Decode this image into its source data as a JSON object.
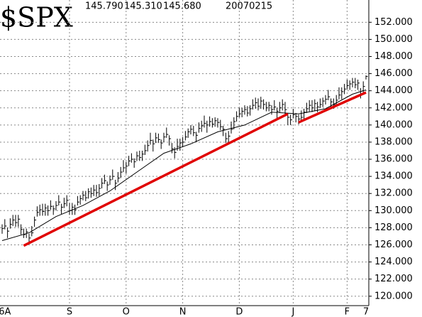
{
  "chart_data": {
    "type": "ohlc",
    "title": "$SPX",
    "quote": [
      "145.790",
      "145.310",
      "145.680"
    ],
    "date": "20070215",
    "categories": [
      null,
      "6A",
      null,
      null,
      null,
      null,
      null,
      null,
      null,
      null,
      null,
      null,
      null,
      null,
      null,
      null,
      null,
      null,
      null,
      null,
      null,
      null,
      null,
      null,
      null,
      "S",
      null,
      null,
      null,
      null,
      null,
      null,
      null,
      null,
      null,
      null,
      null,
      null,
      null,
      null,
      null,
      null,
      null,
      null,
      null,
      null,
      "O",
      null,
      null,
      null,
      null,
      null,
      null,
      null,
      null,
      null,
      null,
      null,
      null,
      null,
      null,
      null,
      null,
      null,
      null,
      null,
      null,
      "N",
      null,
      null,
      null,
      null,
      null,
      null,
      null,
      null,
      null,
      null,
      null,
      null,
      null,
      null,
      null,
      null,
      null,
      null,
      null,
      null,
      "D",
      null,
      null,
      null,
      null,
      null,
      null,
      null,
      null,
      null,
      null,
      null,
      null,
      null,
      null,
      null,
      null,
      null,
      null,
      null,
      "J",
      null,
      null,
      null,
      null,
      null,
      null,
      null,
      null,
      null,
      null,
      null,
      null,
      null,
      null,
      null,
      null,
      null,
      null,
      null,
      "F",
      null,
      null,
      null,
      null,
      null,
      null,
      "7"
    ],
    "high": [
      128.4,
      129.0,
      128.0,
      129.1,
      129.5,
      129.5,
      129.5,
      128.4,
      127.9,
      127.9,
      127.3,
      128.2,
      129.3,
      130.5,
      130.7,
      130.8,
      130.8,
      130.6,
      131.2,
      130.6,
      131.1,
      131.8,
      130.8,
      131.5,
      131.8,
      130.9,
      130.9,
      130.7,
      131.7,
      131.8,
      132.3,
      132.3,
      132.6,
      132.7,
      133.0,
      133.0,
      133.1,
      133.8,
      134.2,
      133.4,
      134.1,
      134.8,
      133.6,
      134.5,
      135.1,
      135.9,
      135.7,
      136.4,
      136.7,
      136.1,
      136.9,
      137.0,
      137.0,
      137.7,
      138.2,
      139.1,
      138.3,
      139.1,
      139.0,
      138.3,
      139.1,
      139.7,
      138.8,
      137.9,
      137.4,
      138.4,
      138.4,
      138.6,
      139.3,
      139.6,
      140.0,
      139.9,
      139.2,
      140.3,
      140.5,
      141.1,
      140.5,
      141.0,
      140.8,
      140.9,
      140.8,
      140.6,
      139.9,
      139.1,
      139.3,
      140.4,
      140.9,
      141.6,
      142.0,
      142.0,
      142.3,
      142.2,
      142.3,
      143.0,
      143.2,
      143.1,
      143.3,
      143.0,
      142.7,
      142.7,
      142.3,
      142.9,
      142.0,
      142.7,
      143.0,
      142.7,
      141.4,
      141.2,
      141.9,
      141.4,
      141.2,
      141.7,
      141.9,
      142.6,
      142.9,
      142.9,
      143.0,
      142.7,
      143.1,
      143.2,
      143.5,
      144.1,
      143.1,
      143.1,
      143.5,
      144.4,
      144.4,
      144.8,
      145.3,
      145.2,
      145.5,
      145.5,
      145.3,
      144.3,
      145.1,
      145.79
    ],
    "low": [
      127.3,
      127.8,
      126.8,
      127.9,
      128.2,
      128.1,
      128.1,
      127.2,
      126.8,
      126.8,
      126.2,
      127.0,
      128.1,
      129.3,
      129.4,
      129.4,
      129.4,
      129.4,
      130.1,
      129.5,
      130.0,
      130.6,
      129.6,
      130.3,
      130.5,
      129.5,
      129.5,
      129.5,
      130.6,
      130.7,
      131.2,
      131.1,
      131.4,
      131.5,
      131.7,
      131.6,
      131.7,
      132.6,
      133.1,
      132.3,
      133.0,
      133.6,
      132.4,
      133.3,
      133.8,
      134.5,
      134.3,
      135.2,
      135.6,
      135.0,
      135.8,
      135.8,
      135.8,
      136.5,
      136.9,
      137.7,
      136.9,
      137.9,
      137.9,
      137.2,
      138.0,
      138.5,
      137.6,
      136.7,
      136.1,
      137.0,
      137.0,
      137.4,
      138.2,
      138.5,
      138.9,
      138.7,
      138.0,
      139.1,
      139.2,
      139.7,
      139.1,
      139.8,
      139.7,
      139.8,
      139.7,
      139.4,
      138.7,
      137.9,
      138.0,
      139.0,
      139.5,
      140.4,
      140.9,
      140.9,
      141.2,
      141.0,
      141.1,
      141.8,
      141.9,
      141.7,
      141.9,
      141.8,
      141.6,
      141.6,
      141.2,
      141.7,
      140.8,
      141.5,
      141.7,
      141.3,
      140.0,
      140.0,
      140.8,
      140.3,
      140.1,
      140.5,
      140.7,
      141.4,
      141.6,
      141.5,
      141.6,
      141.5,
      142.0,
      142.1,
      142.4,
      142.9,
      141.9,
      141.9,
      142.2,
      143.0,
      143.0,
      143.6,
      144.2,
      144.1,
      144.4,
      144.3,
      144.1,
      143.1,
      143.8,
      145.31
    ],
    "close": [
      127.9,
      128.2,
      127.6,
      128.4,
      128.9,
      128.6,
      129.0,
      127.8,
      127.2,
      127.5,
      126.8,
      127.4,
      128.9,
      129.8,
      130.1,
      129.9,
      130.3,
      130.0,
      130.5,
      130.2,
      130.6,
      131.0,
      130.4,
      130.8,
      131.2,
      130.0,
      130.4,
      130.1,
      131.0,
      131.4,
      131.8,
      131.5,
      132.2,
      132.0,
      132.4,
      132.1,
      132.6,
      133.2,
      133.5,
      133.0,
      133.6,
      134.0,
      133.2,
      133.8,
      134.5,
      135.0,
      135.2,
      135.8,
      136.0,
      135.7,
      136.4,
      136.2,
      136.6,
      137.0,
      137.6,
      138.2,
      137.8,
      138.5,
      138.3,
      137.9,
      138.6,
      138.9,
      138.4,
      137.2,
      136.8,
      137.5,
      137.9,
      138.0,
      138.6,
      139.2,
      139.5,
      139.1,
      138.8,
      139.6,
      139.9,
      140.2,
      140.0,
      140.4,
      140.1,
      140.5,
      140.3,
      139.8,
      139.5,
      138.4,
      138.7,
      139.5,
      140.4,
      141.0,
      141.3,
      141.6,
      141.8,
      141.4,
      141.9,
      142.3,
      142.6,
      142.2,
      142.8,
      142.4,
      142.0,
      142.3,
      141.8,
      142.1,
      141.6,
      142.0,
      142.4,
      141.8,
      140.9,
      140.6,
      141.2,
      141.0,
      140.7,
      140.9,
      141.5,
      141.9,
      142.3,
      142.0,
      142.5,
      142.1,
      142.4,
      142.8,
      143.0,
      143.3,
      142.7,
      142.4,
      142.9,
      143.5,
      143.9,
      144.2,
      144.6,
      144.8,
      145.0,
      144.7,
      144.9,
      143.6,
      144.5,
      145.68
    ],
    "bar_color": "#000000",
    "lines": [
      {
        "color": "#000000",
        "width": 1,
        "x": [
          0,
          10,
          20,
          30,
          40,
          50,
          60,
          70,
          80,
          90,
          100,
          110,
          120,
          130,
          135
        ],
        "values": [
          126.5,
          127.4,
          129.3,
          130.6,
          132.3,
          134.5,
          136.7,
          137.8,
          139.2,
          140.0,
          141.5,
          141.3,
          141.9,
          143.6,
          144.1
        ]
      },
      {
        "color": "#e00000",
        "width": 3.5,
        "x": [
          8,
          106
        ],
        "values": [
          125.9,
          141.3
        ]
      },
      {
        "color": "#e00000",
        "width": 3.5,
        "x": [
          110,
          135
        ],
        "values": [
          140.3,
          143.8
        ]
      }
    ],
    "ylim": [
      118.9,
      154.6
    ],
    "yticks": [
      {
        "value": 120,
        "label": "120.000"
      },
      {
        "value": 122,
        "label": "122.000"
      },
      {
        "value": 124,
        "label": "124.000"
      },
      {
        "value": 126,
        "label": "126.000"
      },
      {
        "value": 128,
        "label": "128.000"
      },
      {
        "value": 130,
        "label": "130.000"
      },
      {
        "value": 132,
        "label": "132.000"
      },
      {
        "value": 134,
        "label": "134.000"
      },
      {
        "value": 136,
        "label": "136.000"
      },
      {
        "value": 138,
        "label": "138.000"
      },
      {
        "value": 140,
        "label": "140.000"
      },
      {
        "value": 142,
        "label": "142.000"
      },
      {
        "value": 144,
        "label": "144.000"
      },
      {
        "value": 146,
        "label": "146.000"
      },
      {
        "value": 148,
        "label": "148.000"
      },
      {
        "value": 150,
        "label": "150.000"
      },
      {
        "value": 152,
        "label": "152.000"
      }
    ],
    "grid": true
  }
}
